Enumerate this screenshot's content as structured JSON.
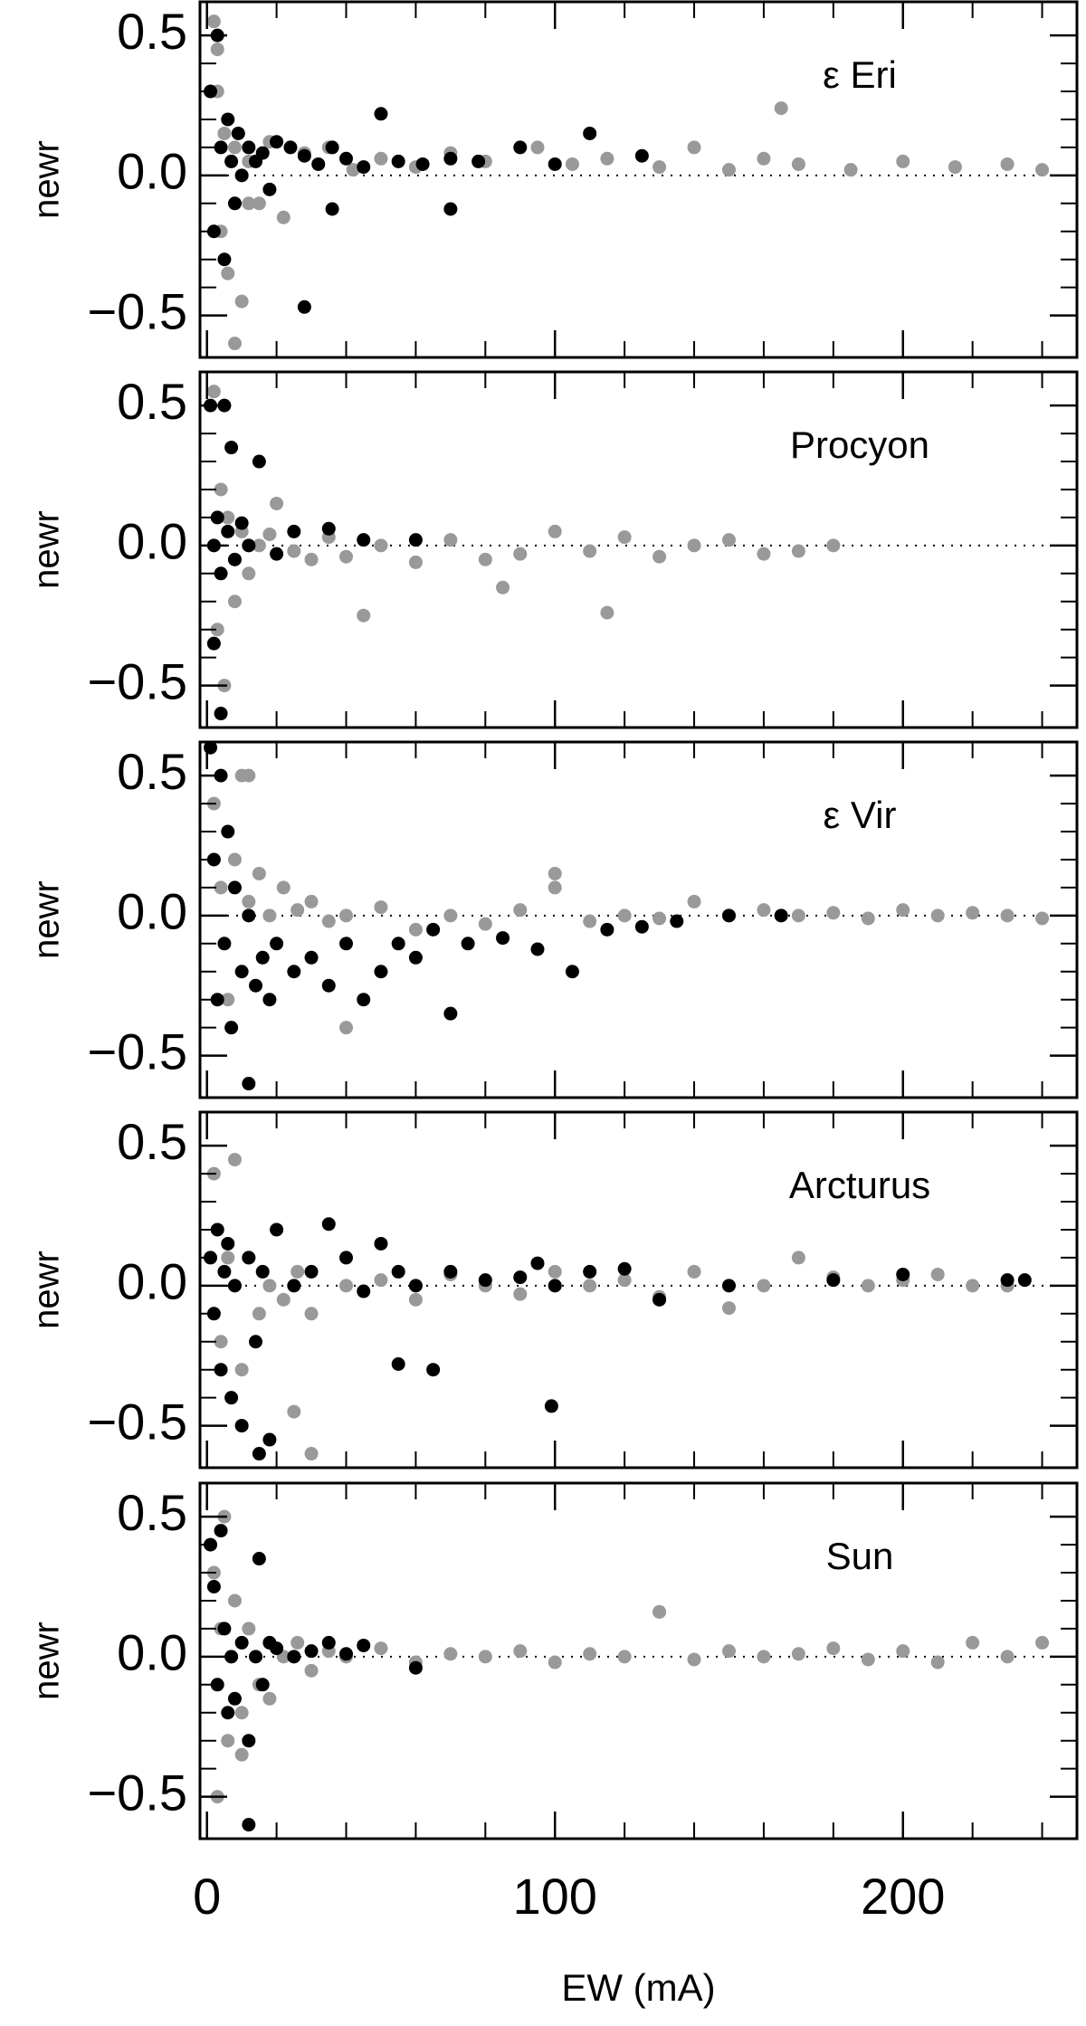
{
  "chart_data": [
    {
      "type": "scatter",
      "title": "ε Eri",
      "ylabel": "newr",
      "xlim": [
        -2,
        250
      ],
      "ylim": [
        -0.65,
        0.62
      ],
      "xticks": [
        0,
        100,
        200
      ],
      "xminorticks": [
        20,
        40,
        60,
        80,
        120,
        140,
        160,
        180,
        220,
        240
      ],
      "yticks": [
        {
          "value": -0.5,
          "label": "−0.5"
        },
        {
          "value": 0,
          "label": "0.0"
        },
        0.5
      ],
      "yminorticks": [
        -0.4,
        -0.3,
        -0.2,
        -0.1,
        0.1,
        0.2,
        0.3,
        0.4
      ],
      "zeroline": true,
      "series": [
        {
          "color": "#999999",
          "x": [
            2,
            3,
            4,
            5,
            6,
            8,
            10,
            12,
            15,
            18,
            22,
            28,
            35,
            42,
            50,
            60,
            70,
            80,
            95,
            105,
            115,
            130,
            140,
            150,
            160,
            170,
            185,
            200,
            215,
            230,
            240,
            165,
            8,
            3,
            12
          ],
          "values": [
            0.55,
            0.3,
            -0.2,
            0.15,
            -0.35,
            0.1,
            -0.45,
            0.05,
            -0.1,
            0.12,
            -0.15,
            0.08,
            0.1,
            0.02,
            0.06,
            0.03,
            0.08,
            0.05,
            0.1,
            0.04,
            0.06,
            0.03,
            0.1,
            0.02,
            0.06,
            0.04,
            0.02,
            0.05,
            0.03,
            0.04,
            0.02,
            0.24,
            -0.6,
            0.45,
            -0.1
          ]
        },
        {
          "color": "#000000",
          "x": [
            1,
            2,
            3,
            4,
            5,
            6,
            7,
            8,
            9,
            10,
            12,
            14,
            16,
            18,
            20,
            24,
            28,
            32,
            36,
            40,
            45,
            50,
            55,
            62,
            70,
            78,
            90,
            100,
            110,
            125,
            28,
            36,
            70
          ],
          "values": [
            0.3,
            -0.2,
            0.5,
            0.1,
            -0.3,
            0.2,
            0.05,
            -0.1,
            0.15,
            0.0,
            0.1,
            0.05,
            0.08,
            -0.05,
            0.12,
            0.1,
            0.07,
            0.04,
            0.1,
            0.06,
            0.03,
            0.22,
            0.05,
            0.04,
            0.06,
            0.05,
            0.1,
            0.04,
            0.15,
            0.07,
            -0.47,
            -0.12,
            -0.12
          ]
        }
      ]
    },
    {
      "type": "scatter",
      "title": "Procyon",
      "ylabel": "newr",
      "xlim": [
        -2,
        250
      ],
      "ylim": [
        -0.65,
        0.62
      ],
      "xticks": [
        0,
        100,
        200
      ],
      "xminorticks": [
        20,
        40,
        60,
        80,
        120,
        140,
        160,
        180,
        220,
        240
      ],
      "yticks": [
        {
          "value": -0.5,
          "label": "−0.5"
        },
        {
          "value": 0,
          "label": "0.0"
        },
        0.5
      ],
      "yminorticks": [
        -0.4,
        -0.3,
        -0.2,
        -0.1,
        0.1,
        0.2,
        0.3,
        0.4
      ],
      "zeroline": true,
      "series": [
        {
          "color": "#999999",
          "x": [
            2,
            3,
            4,
            5,
            6,
            8,
            10,
            12,
            15,
            18,
            20,
            25,
            30,
            35,
            40,
            50,
            60,
            70,
            80,
            90,
            100,
            110,
            120,
            130,
            140,
            150,
            160,
            170,
            180,
            45,
            85,
            115
          ],
          "values": [
            0.55,
            -0.3,
            0.2,
            -0.5,
            0.1,
            -0.2,
            0.05,
            -0.1,
            0.0,
            0.04,
            0.15,
            -0.02,
            -0.05,
            0.03,
            -0.04,
            0.0,
            -0.06,
            0.02,
            -0.05,
            -0.03,
            0.05,
            -0.02,
            0.03,
            -0.04,
            0.0,
            0.02,
            -0.03,
            -0.02,
            0.0,
            -0.25,
            -0.15,
            -0.24
          ]
        },
        {
          "color": "#000000",
          "x": [
            1,
            2,
            3,
            4,
            5,
            6,
            7,
            8,
            10,
            12,
            15,
            20,
            25,
            35,
            45,
            60,
            2,
            4
          ],
          "values": [
            0.5,
            0.0,
            0.1,
            -0.1,
            0.5,
            0.05,
            0.35,
            -0.05,
            0.08,
            0.0,
            0.3,
            -0.03,
            0.05,
            0.06,
            0.02,
            0.02,
            -0.35,
            -0.6
          ]
        }
      ]
    },
    {
      "type": "scatter",
      "title": "ε Vir",
      "ylabel": "newr",
      "xlim": [
        -2,
        250
      ],
      "ylim": [
        -0.65,
        0.62
      ],
      "xticks": [
        0,
        100,
        200
      ],
      "xminorticks": [
        20,
        40,
        60,
        80,
        120,
        140,
        160,
        180,
        220,
        240
      ],
      "yticks": [
        {
          "value": -0.5,
          "label": "−0.5"
        },
        {
          "value": 0,
          "label": "0.0"
        },
        0.5
      ],
      "yminorticks": [
        -0.4,
        -0.3,
        -0.2,
        -0.1,
        0.1,
        0.2,
        0.3,
        0.4
      ],
      "zeroline": true,
      "series": [
        {
          "color": "#999999",
          "x": [
            2,
            4,
            6,
            8,
            10,
            12,
            15,
            18,
            22,
            26,
            30,
            35,
            40,
            50,
            60,
            70,
            80,
            90,
            100,
            110,
            120,
            130,
            140,
            150,
            160,
            170,
            180,
            190,
            200,
            210,
            220,
            230,
            240,
            12,
            40,
            100
          ],
          "values": [
            0.4,
            0.1,
            -0.3,
            0.2,
            0.5,
            0.05,
            0.15,
            0.0,
            0.1,
            0.02,
            0.05,
            -0.02,
            0.0,
            0.03,
            -0.05,
            0.0,
            -0.03,
            0.02,
            0.1,
            -0.02,
            0.0,
            -0.01,
            0.05,
            0.0,
            0.02,
            0.0,
            0.01,
            -0.01,
            0.02,
            0.0,
            0.01,
            0.0,
            -0.01,
            0.5,
            -0.4,
            0.15
          ]
        },
        {
          "color": "#000000",
          "x": [
            1,
            2,
            3,
            4,
            5,
            6,
            7,
            8,
            10,
            12,
            14,
            16,
            18,
            20,
            25,
            30,
            35,
            40,
            45,
            50,
            55,
            60,
            65,
            70,
            75,
            85,
            95,
            105,
            115,
            125,
            135,
            150,
            165,
            12
          ],
          "values": [
            0.6,
            0.2,
            -0.3,
            0.5,
            -0.1,
            0.3,
            -0.4,
            0.1,
            -0.2,
            0.0,
            -0.25,
            -0.15,
            -0.3,
            -0.1,
            -0.2,
            -0.15,
            -0.25,
            -0.1,
            -0.3,
            -0.2,
            -0.1,
            -0.15,
            -0.05,
            -0.35,
            -0.1,
            -0.08,
            -0.12,
            -0.2,
            -0.05,
            -0.04,
            -0.02,
            0.0,
            0.0,
            -0.6
          ]
        }
      ]
    },
    {
      "type": "scatter",
      "title": "Arcturus",
      "ylabel": "newr",
      "xlim": [
        -2,
        250
      ],
      "ylim": [
        -0.65,
        0.62
      ],
      "xticks": [
        0,
        100,
        200
      ],
      "xminorticks": [
        20,
        40,
        60,
        80,
        120,
        140,
        160,
        180,
        220,
        240
      ],
      "yticks": [
        {
          "value": -0.5,
          "label": "−0.5"
        },
        {
          "value": 0,
          "label": "0.0"
        },
        0.5
      ],
      "yminorticks": [
        -0.4,
        -0.3,
        -0.2,
        -0.1,
        0.1,
        0.2,
        0.3,
        0.4
      ],
      "zeroline": true,
      "series": [
        {
          "color": "#999999",
          "x": [
            2,
            4,
            6,
            8,
            10,
            12,
            15,
            18,
            22,
            26,
            30,
            40,
            50,
            60,
            70,
            80,
            90,
            100,
            110,
            120,
            130,
            140,
            150,
            160,
            170,
            180,
            190,
            200,
            210,
            220,
            230,
            10,
            25,
            30
          ],
          "values": [
            0.4,
            -0.2,
            0.1,
            0.45,
            -0.3,
            0.1,
            -0.1,
            0.0,
            -0.05,
            0.05,
            -0.1,
            0.0,
            0.02,
            -0.05,
            0.04,
            0.0,
            -0.03,
            0.05,
            0.0,
            0.02,
            -0.04,
            0.05,
            -0.08,
            0.0,
            0.1,
            0.03,
            0.0,
            0.02,
            0.04,
            0.0,
            0.0,
            -0.5,
            -0.45,
            -0.6
          ]
        },
        {
          "color": "#000000",
          "x": [
            1,
            2,
            3,
            4,
            5,
            6,
            7,
            8,
            10,
            12,
            14,
            16,
            18,
            20,
            25,
            30,
            35,
            40,
            45,
            50,
            55,
            60,
            65,
            70,
            80,
            90,
            95,
            100,
            110,
            120,
            130,
            150,
            180,
            200,
            230,
            235,
            55,
            99,
            15
          ],
          "values": [
            0.1,
            -0.1,
            0.2,
            -0.3,
            0.05,
            0.15,
            -0.4,
            0.0,
            -0.5,
            0.1,
            -0.2,
            0.05,
            -0.55,
            0.2,
            0.0,
            0.05,
            0.22,
            0.1,
            -0.02,
            0.15,
            0.05,
            0.0,
            -0.3,
            0.05,
            0.02,
            0.03,
            0.08,
            0.0,
            0.05,
            0.06,
            -0.05,
            0.0,
            0.02,
            0.04,
            0.02,
            0.02,
            -0.28,
            -0.43,
            -0.6
          ]
        }
      ]
    },
    {
      "type": "scatter",
      "title": "Sun",
      "ylabel": "newr",
      "xlabel": "EW (mA)",
      "xlim": [
        -2,
        250
      ],
      "ylim": [
        -0.65,
        0.62
      ],
      "xticks": [
        0,
        100,
        200
      ],
      "xminorticks": [
        20,
        40,
        60,
        80,
        120,
        140,
        160,
        180,
        220,
        240
      ],
      "yticks": [
        {
          "value": -0.5,
          "label": "−0.5"
        },
        {
          "value": 0,
          "label": "0.0"
        },
        0.5
      ],
      "yminorticks": [
        -0.4,
        -0.3,
        -0.2,
        -0.1,
        0.1,
        0.2,
        0.3,
        0.4
      ],
      "zeroline": true,
      "series": [
        {
          "color": "#999999",
          "x": [
            2,
            3,
            4,
            5,
            6,
            8,
            10,
            12,
            15,
            18,
            22,
            26,
            30,
            35,
            40,
            50,
            60,
            70,
            80,
            90,
            100,
            110,
            120,
            130,
            140,
            150,
            160,
            170,
            180,
            190,
            200,
            210,
            220,
            230,
            240,
            130,
            10
          ],
          "values": [
            0.3,
            -0.5,
            0.1,
            0.5,
            -0.3,
            0.2,
            -0.2,
            0.1,
            -0.1,
            -0.15,
            0.0,
            0.05,
            -0.05,
            0.02,
            0.0,
            0.03,
            -0.02,
            0.01,
            0.0,
            0.02,
            -0.02,
            0.01,
            0.0,
            0.16,
            -0.01,
            0.02,
            0.0,
            0.01,
            0.03,
            -0.01,
            0.02,
            -0.02,
            0.05,
            0.0,
            0.05,
            0.16,
            -0.35
          ]
        },
        {
          "color": "#000000",
          "x": [
            1,
            2,
            3,
            4,
            5,
            6,
            7,
            8,
            10,
            12,
            14,
            16,
            18,
            20,
            25,
            30,
            35,
            40,
            45,
            60,
            15,
            12
          ],
          "values": [
            0.4,
            0.25,
            -0.1,
            0.45,
            0.1,
            -0.2,
            0.0,
            -0.15,
            0.05,
            -0.3,
            0.0,
            -0.1,
            0.05,
            0.03,
            0.0,
            0.02,
            0.05,
            0.01,
            0.04,
            -0.04,
            0.35,
            -0.6
          ]
        }
      ]
    }
  ]
}
